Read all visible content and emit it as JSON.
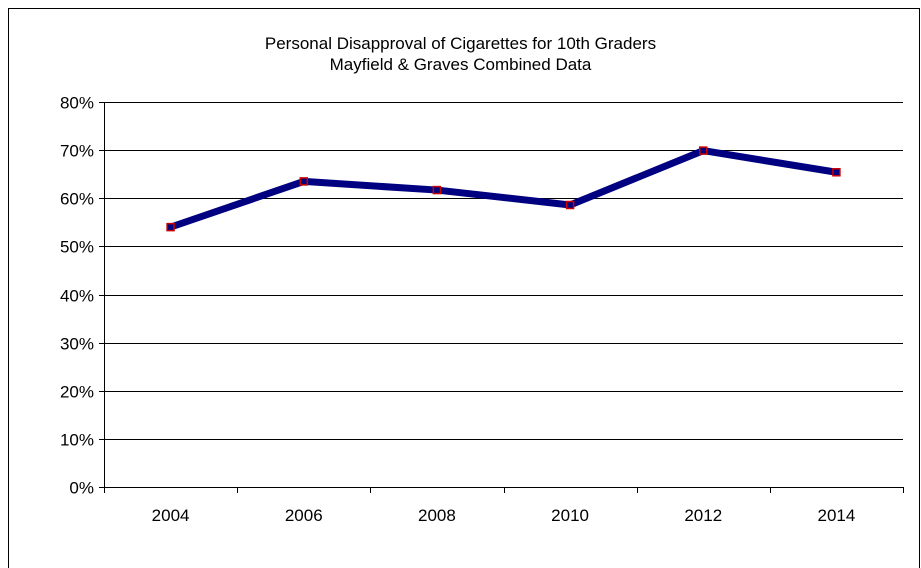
{
  "chart_data": {
    "type": "line",
    "title": "Personal Disapproval of Cigarettes for 10th Graders",
    "subtitle": "Mayfield & Graves Combined Data",
    "categories": [
      "2004",
      "2006",
      "2008",
      "2010",
      "2012",
      "2014"
    ],
    "series": [
      {
        "values": [
          54,
          63.5,
          61.7,
          58.6,
          69.9,
          65.4
        ]
      }
    ],
    "ylim": [
      0,
      80
    ],
    "yticks": [
      0,
      10,
      20,
      30,
      40,
      50,
      60,
      70,
      80
    ],
    "ytick_labels": [
      "0%",
      "10%",
      "20%",
      "30%",
      "40%",
      "50%",
      "60%",
      "70%",
      "80%"
    ],
    "grid": true,
    "line_color": "#000080",
    "marker_color": "#cc0000",
    "gridline_color": "#000000"
  }
}
